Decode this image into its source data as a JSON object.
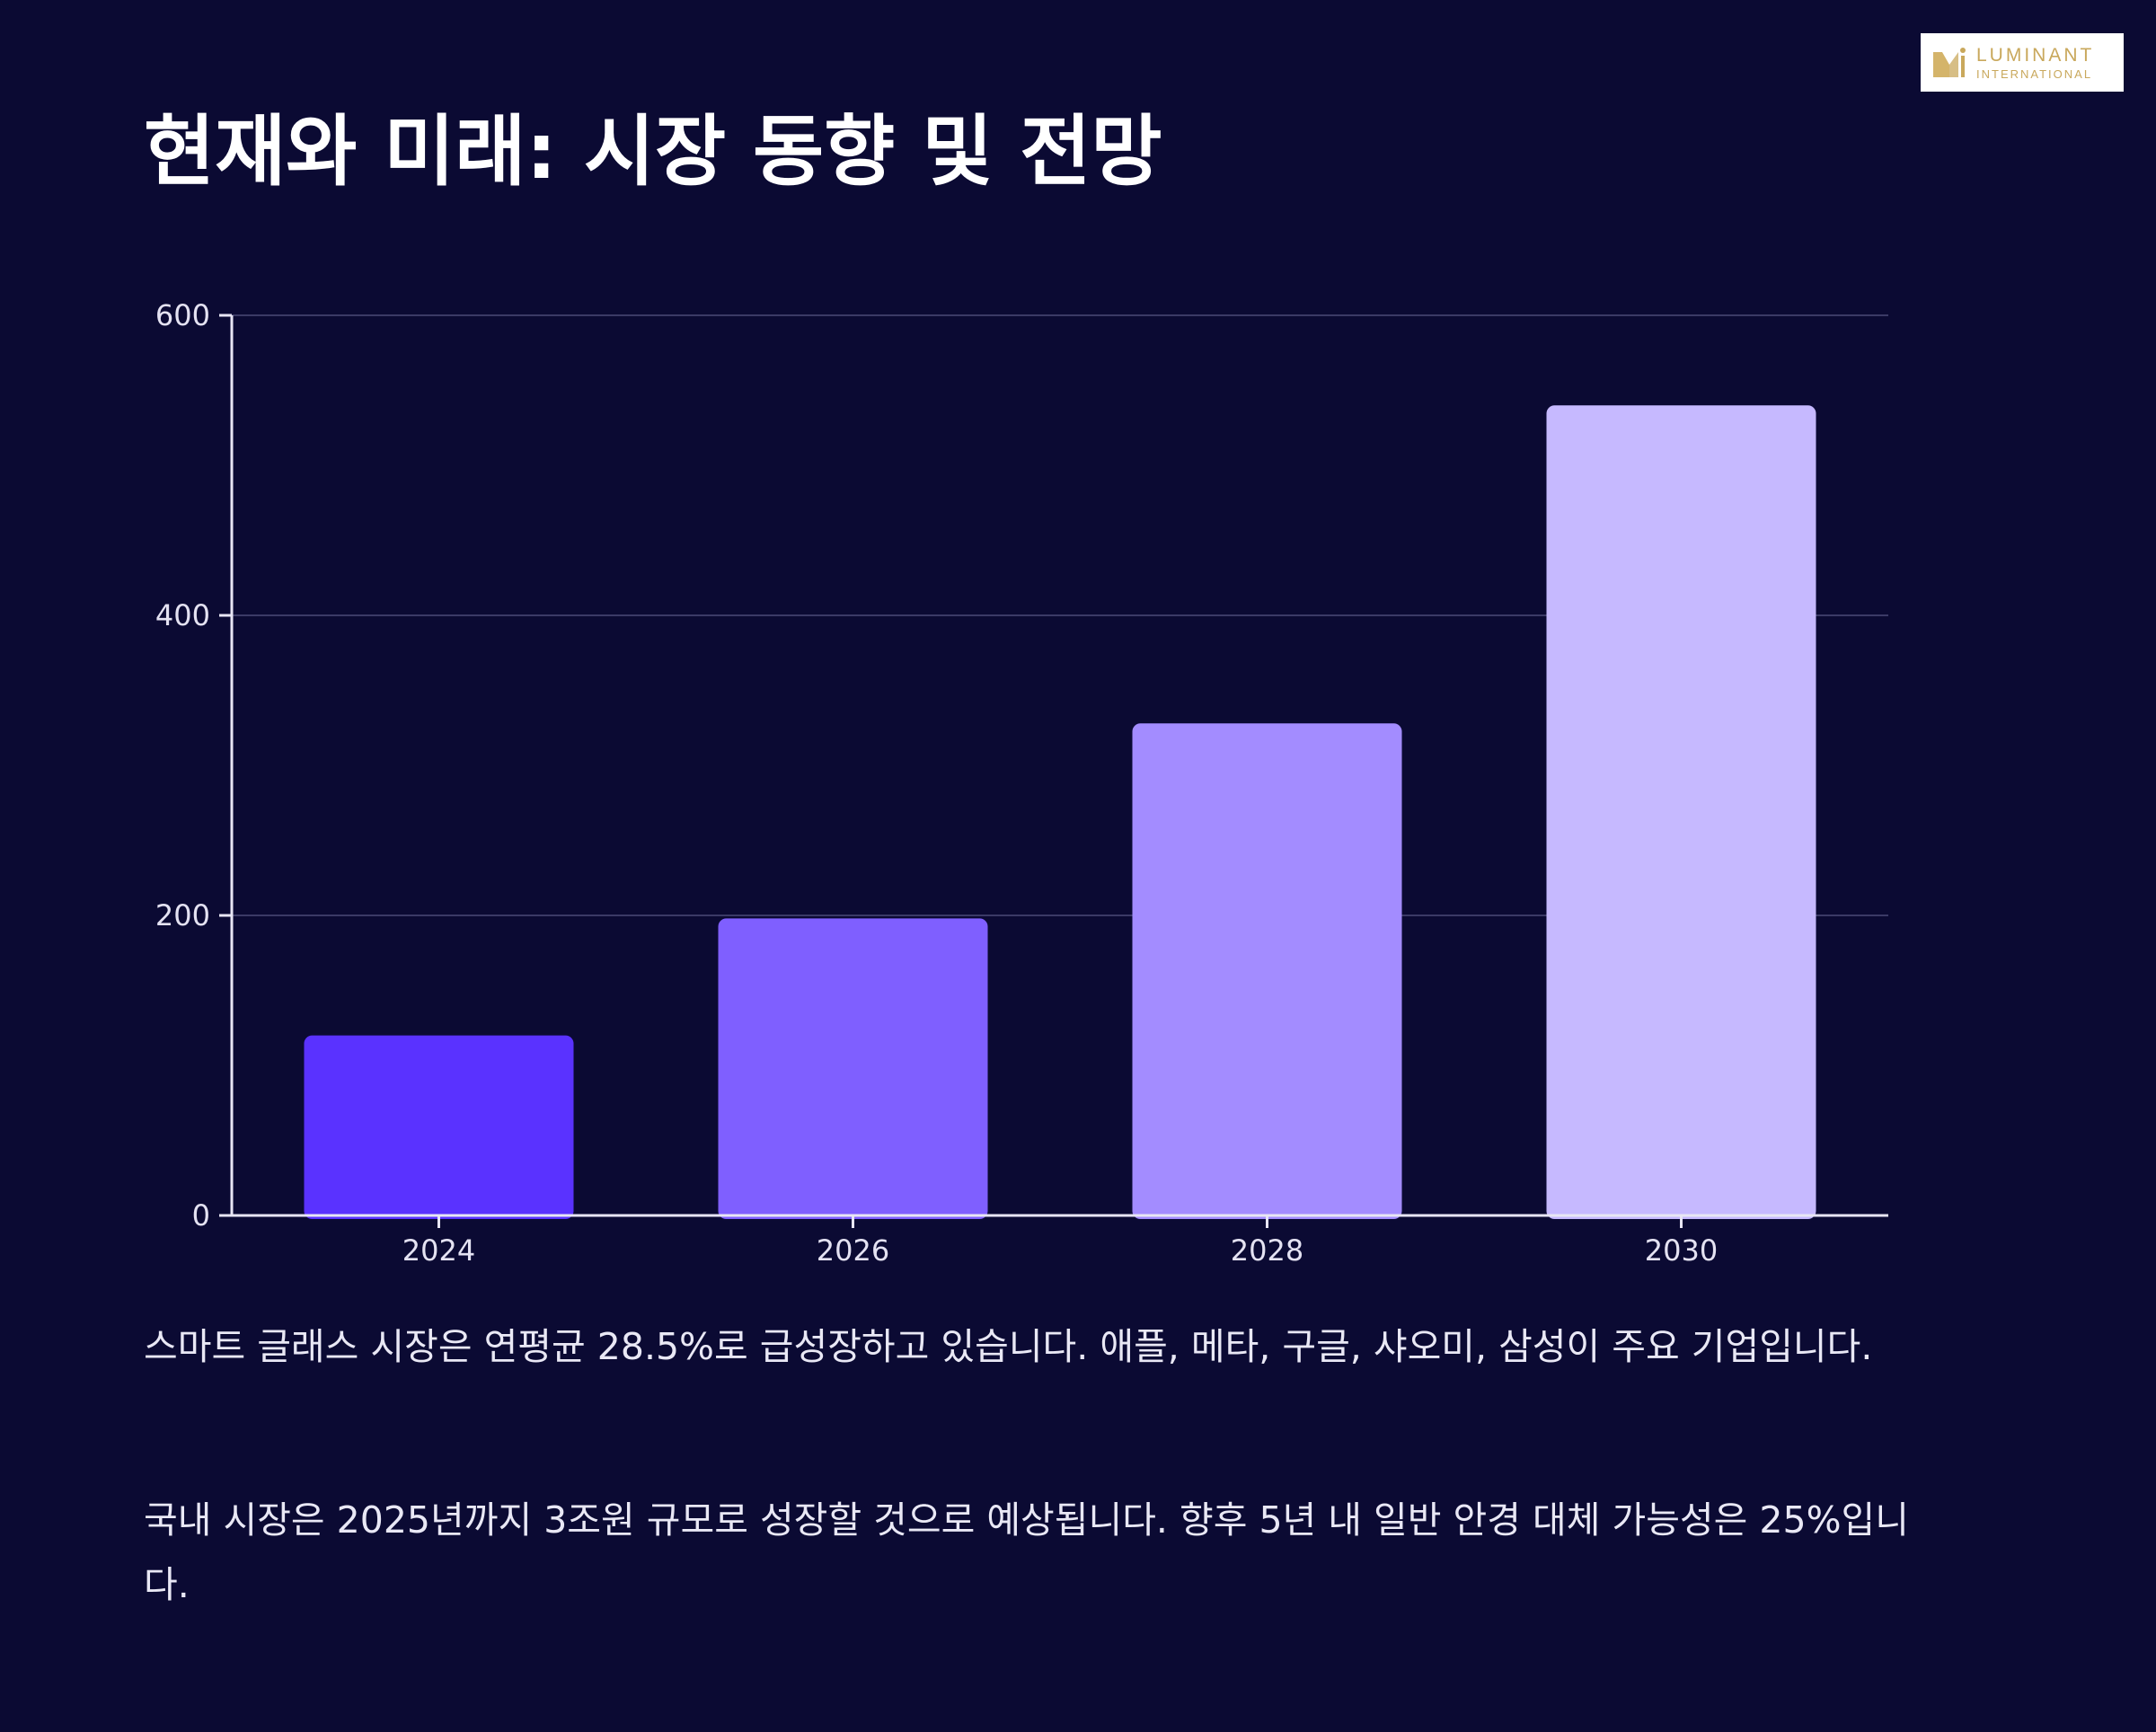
{
  "logo": {
    "line1": "LUMINANT",
    "line2": "INTERNATIONAL",
    "color": "#c9a85c"
  },
  "title": "현재와 미래: 시장 동향 및 전망",
  "chart_data": {
    "type": "bar",
    "title": "",
    "xlabel": "",
    "ylabel": "",
    "categories": [
      "2024",
      "2026",
      "2028",
      "2030"
    ],
    "values": [
      120,
      198,
      328,
      540
    ],
    "ylim": [
      0,
      600
    ],
    "yticks": [
      0,
      200,
      400,
      600
    ],
    "grid": true,
    "legend": "none",
    "colors": [
      "#5a32ff",
      "#7f5fff",
      "#a38cff",
      "#c6b9ff"
    ],
    "gridColor": "#3b3a66",
    "axisColor": "#e8e6f4"
  },
  "paragraphs": [
    "스마트 글래스 시장은 연평균 28.5%로 급성장하고 있습니다. 애플, 메타, 구글, 샤오미, 삼성이 주요 기업입니다.",
    "국내 시장은 2025년까지 3조원 규모로 성장할 것으로 예상됩니다. 향후 5년 내 일반 안경 대체 가능성은 25%입니다."
  ]
}
